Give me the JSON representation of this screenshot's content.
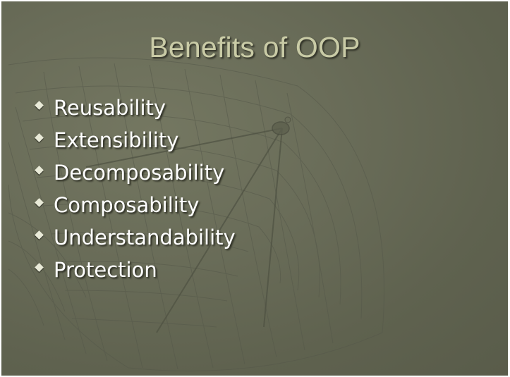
{
  "slide": {
    "title": "Benefits of OOP",
    "bullets": [
      {
        "label": "Reusability"
      },
      {
        "label": "Extensibility"
      },
      {
        "label": "Decomposability"
      },
      {
        "label": "Composability"
      },
      {
        "label": "Understandability"
      },
      {
        "label": "Protection"
      }
    ]
  },
  "colors": {
    "background": "#6a6d59",
    "title": "#c9cba6",
    "bullet_text": "#ffffff",
    "bullet_icon": "#e9ead8"
  },
  "icons": {
    "bullet": "diamond-bullet-icon",
    "background_art": "satellite-dish-grid-art"
  }
}
